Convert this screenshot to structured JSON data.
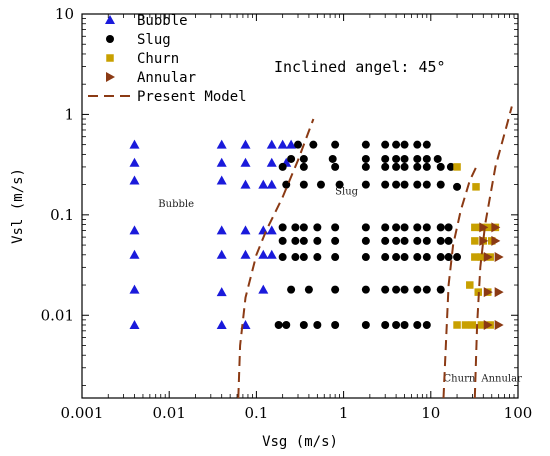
{
  "chart_data": {
    "type": "scatter",
    "xscale": "log",
    "yscale": "log",
    "xlim": [
      0.001,
      100
    ],
    "ylim": [
      0.0015,
      10
    ],
    "xlabel": "Vsg (m/s)",
    "ylabel": "Vsl (m/s)",
    "x_ticks": [
      0.001,
      0.01,
      0.1,
      1,
      10,
      100
    ],
    "x_tick_labels": [
      "0.001",
      "0.01",
      "0.1",
      "1",
      "10",
      "100"
    ],
    "y_ticks": [
      0.01,
      0.1,
      1,
      10
    ],
    "y_tick_labels": [
      "0.01",
      "0.1",
      "1",
      "10"
    ],
    "annotation": "Inclined angel: 45°",
    "region_labels": [
      {
        "text": "Bubble",
        "x": 0.0075,
        "y": 0.12
      },
      {
        "text": "Slug",
        "x": 0.8,
        "y": 0.16
      },
      {
        "text": "Churn",
        "x": 14,
        "y": 0.0022
      },
      {
        "text": "Annular",
        "x": 38,
        "y": 0.0022
      }
    ],
    "legend_position": "top-left",
    "series": [
      {
        "name": "Bubble",
        "marker": "triangle-up",
        "color": "#1a1adb",
        "points": [
          [
            0.004,
            0.5
          ],
          [
            0.004,
            0.33
          ],
          [
            0.004,
            0.22
          ],
          [
            0.004,
            0.07
          ],
          [
            0.004,
            0.04
          ],
          [
            0.004,
            0.018
          ],
          [
            0.004,
            0.008
          ],
          [
            0.04,
            0.5
          ],
          [
            0.04,
            0.33
          ],
          [
            0.04,
            0.22
          ],
          [
            0.04,
            0.07
          ],
          [
            0.04,
            0.04
          ],
          [
            0.04,
            0.017
          ],
          [
            0.04,
            0.008
          ],
          [
            0.075,
            0.5
          ],
          [
            0.075,
            0.33
          ],
          [
            0.075,
            0.2
          ],
          [
            0.075,
            0.07
          ],
          [
            0.075,
            0.04
          ],
          [
            0.075,
            0.008
          ],
          [
            0.12,
            0.2
          ],
          [
            0.12,
            0.07
          ],
          [
            0.12,
            0.04
          ],
          [
            0.12,
            0.018
          ],
          [
            0.15,
            0.5
          ],
          [
            0.15,
            0.33
          ],
          [
            0.15,
            0.2
          ],
          [
            0.15,
            0.07
          ],
          [
            0.15,
            0.04
          ],
          [
            0.2,
            0.5
          ],
          [
            0.25,
            0.5
          ],
          [
            0.22,
            0.33
          ]
        ]
      },
      {
        "name": "Slug",
        "marker": "circle",
        "color": "#000000",
        "points": [
          [
            0.3,
            0.5
          ],
          [
            0.45,
            0.5
          ],
          [
            0.8,
            0.5
          ],
          [
            1.8,
            0.5
          ],
          [
            3,
            0.5
          ],
          [
            4,
            0.5
          ],
          [
            5,
            0.5
          ],
          [
            7,
            0.5
          ],
          [
            9,
            0.5
          ],
          [
            0.25,
            0.36
          ],
          [
            0.35,
            0.36
          ],
          [
            0.75,
            0.36
          ],
          [
            1.8,
            0.36
          ],
          [
            3,
            0.36
          ],
          [
            4,
            0.36
          ],
          [
            5,
            0.36
          ],
          [
            7,
            0.36
          ],
          [
            9,
            0.36
          ],
          [
            12,
            0.36
          ],
          [
            0.2,
            0.3
          ],
          [
            0.35,
            0.3
          ],
          [
            0.8,
            0.3
          ],
          [
            1.8,
            0.3
          ],
          [
            3,
            0.3
          ],
          [
            4,
            0.3
          ],
          [
            5,
            0.3
          ],
          [
            7,
            0.3
          ],
          [
            9,
            0.3
          ],
          [
            13,
            0.3
          ],
          [
            17,
            0.3
          ],
          [
            0.22,
            0.2
          ],
          [
            0.35,
            0.2
          ],
          [
            0.55,
            0.2
          ],
          [
            0.9,
            0.2
          ],
          [
            1.8,
            0.2
          ],
          [
            3,
            0.2
          ],
          [
            4,
            0.2
          ],
          [
            5,
            0.2
          ],
          [
            7,
            0.2
          ],
          [
            9,
            0.2
          ],
          [
            13,
            0.2
          ],
          [
            20,
            0.19
          ],
          [
            0.2,
            0.075
          ],
          [
            0.28,
            0.075
          ],
          [
            0.35,
            0.075
          ],
          [
            0.5,
            0.075
          ],
          [
            0.8,
            0.075
          ],
          [
            1.8,
            0.075
          ],
          [
            3,
            0.075
          ],
          [
            4,
            0.075
          ],
          [
            5,
            0.075
          ],
          [
            7,
            0.075
          ],
          [
            9,
            0.075
          ],
          [
            13,
            0.075
          ],
          [
            16,
            0.075
          ],
          [
            0.2,
            0.055
          ],
          [
            0.28,
            0.055
          ],
          [
            0.35,
            0.055
          ],
          [
            0.5,
            0.055
          ],
          [
            0.8,
            0.055
          ],
          [
            1.8,
            0.055
          ],
          [
            3,
            0.055
          ],
          [
            4,
            0.055
          ],
          [
            5,
            0.055
          ],
          [
            7,
            0.055
          ],
          [
            9,
            0.055
          ],
          [
            13,
            0.055
          ],
          [
            16,
            0.055
          ],
          [
            0.2,
            0.038
          ],
          [
            0.28,
            0.038
          ],
          [
            0.35,
            0.038
          ],
          [
            0.5,
            0.038
          ],
          [
            0.8,
            0.038
          ],
          [
            1.8,
            0.038
          ],
          [
            3,
            0.038
          ],
          [
            4,
            0.038
          ],
          [
            5,
            0.038
          ],
          [
            7,
            0.038
          ],
          [
            9,
            0.038
          ],
          [
            13,
            0.038
          ],
          [
            16,
            0.038
          ],
          [
            20,
            0.038
          ],
          [
            0.25,
            0.018
          ],
          [
            0.4,
            0.018
          ],
          [
            0.8,
            0.018
          ],
          [
            1.8,
            0.018
          ],
          [
            3,
            0.018
          ],
          [
            4,
            0.018
          ],
          [
            5,
            0.018
          ],
          [
            7,
            0.018
          ],
          [
            9,
            0.018
          ],
          [
            13,
            0.018
          ],
          [
            0.18,
            0.008
          ],
          [
            0.22,
            0.008
          ],
          [
            0.35,
            0.008
          ],
          [
            0.5,
            0.008
          ],
          [
            0.8,
            0.008
          ],
          [
            1.8,
            0.008
          ],
          [
            3,
            0.008
          ],
          [
            4,
            0.008
          ],
          [
            5,
            0.008
          ],
          [
            7,
            0.008
          ],
          [
            9,
            0.008
          ]
        ]
      },
      {
        "name": "Churn",
        "marker": "square",
        "color": "#c8a000",
        "points": [
          [
            20,
            0.3
          ],
          [
            33,
            0.19
          ],
          [
            32,
            0.075
          ],
          [
            38,
            0.075
          ],
          [
            45,
            0.075
          ],
          [
            55,
            0.075
          ],
          [
            32,
            0.055
          ],
          [
            40,
            0.055
          ],
          [
            50,
            0.055
          ],
          [
            32,
            0.038
          ],
          [
            38,
            0.038
          ],
          [
            48,
            0.038
          ],
          [
            28,
            0.02
          ],
          [
            35,
            0.017
          ],
          [
            45,
            0.017
          ],
          [
            20,
            0.008
          ],
          [
            25,
            0.008
          ],
          [
            30,
            0.008
          ],
          [
            38,
            0.008
          ],
          [
            48,
            0.008
          ]
        ]
      },
      {
        "name": "Annular",
        "marker": "triangle-right",
        "color": "#8b3a14",
        "points": [
          [
            40,
            0.075
          ],
          [
            55,
            0.075
          ],
          [
            40,
            0.055
          ],
          [
            55,
            0.055
          ],
          [
            45,
            0.038
          ],
          [
            60,
            0.038
          ],
          [
            45,
            0.017
          ],
          [
            60,
            0.017
          ],
          [
            45,
            0.008
          ],
          [
            60,
            0.008
          ]
        ]
      },
      {
        "name": "Present Model",
        "marker": "dashed-line",
        "color": "#8b3a14",
        "lines": [
          [
            [
              0.062,
              0.0015
            ],
            [
              0.065,
              0.005
            ],
            [
              0.075,
              0.015
            ],
            [
              0.1,
              0.04
            ],
            [
              0.13,
              0.07
            ],
            [
              0.2,
              0.15
            ],
            [
              0.3,
              0.35
            ],
            [
              0.45,
              0.9
            ]
          ],
          [
            [
              14,
              0.0015
            ],
            [
              15,
              0.006
            ],
            [
              16,
              0.02
            ],
            [
              18,
              0.05
            ],
            [
              22,
              0.11
            ],
            [
              28,
              0.22
            ],
            [
              35,
              0.33
            ]
          ],
          [
            [
              32,
              0.0015
            ],
            [
              34,
              0.008
            ],
            [
              37,
              0.03
            ],
            [
              42,
              0.08
            ],
            [
              55,
              0.3
            ],
            [
              75,
              0.8
            ],
            [
              85,
              1.2
            ]
          ]
        ]
      }
    ]
  }
}
